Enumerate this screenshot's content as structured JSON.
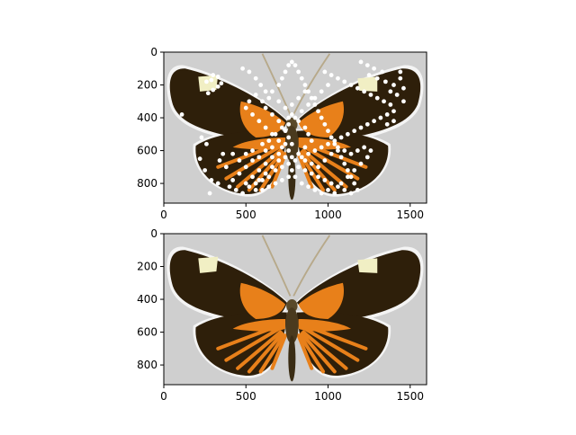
{
  "chart_data": [
    {
      "type": "image",
      "subject": "butterfly-photo-with-keypoints",
      "xlim": [
        0,
        1600
      ],
      "ylim": [
        920,
        0
      ],
      "xticks": [
        0,
        500,
        1000,
        1500
      ],
      "yticks": [
        0,
        200,
        400,
        600,
        800
      ],
      "xlabel": "",
      "ylabel": "",
      "title": "",
      "overlay_color": "#ffffff",
      "background_color": "#cfcfcf",
      "points": [
        [
          300,
          140
        ],
        [
          330,
          150
        ],
        [
          290,
          170
        ],
        [
          260,
          180
        ],
        [
          330,
          210
        ],
        [
          300,
          230
        ],
        [
          270,
          250
        ],
        [
          350,
          190
        ],
        [
          110,
          380
        ],
        [
          230,
          520
        ],
        [
          260,
          560
        ],
        [
          220,
          650
        ],
        [
          250,
          720
        ],
        [
          290,
          780
        ],
        [
          330,
          800
        ],
        [
          280,
          860
        ],
        [
          480,
          100
        ],
        [
          520,
          120
        ],
        [
          560,
          160
        ],
        [
          590,
          200
        ],
        [
          620,
          240
        ],
        [
          560,
          260
        ],
        [
          520,
          300
        ],
        [
          500,
          340
        ],
        [
          540,
          380
        ],
        [
          580,
          420
        ],
        [
          620,
          460
        ],
        [
          660,
          500
        ],
        [
          700,
          540
        ],
        [
          720,
          580
        ],
        [
          660,
          580
        ],
        [
          620,
          600
        ],
        [
          580,
          640
        ],
        [
          540,
          660
        ],
        [
          500,
          700
        ],
        [
          460,
          740
        ],
        [
          420,
          780
        ],
        [
          400,
          820
        ],
        [
          440,
          840
        ],
        [
          480,
          860
        ],
        [
          520,
          820
        ],
        [
          560,
          800
        ],
        [
          600,
          780
        ],
        [
          640,
          760
        ],
        [
          680,
          720
        ],
        [
          720,
          700
        ],
        [
          700,
          660
        ],
        [
          660,
          640
        ],
        [
          620,
          680
        ],
        [
          580,
          720
        ],
        [
          540,
          760
        ],
        [
          500,
          800
        ],
        [
          380,
          700
        ],
        [
          340,
          660
        ],
        [
          360,
          620
        ],
        [
          420,
          620
        ],
        [
          460,
          660
        ],
        [
          500,
          620
        ],
        [
          540,
          600
        ],
        [
          600,
          560
        ],
        [
          640,
          540
        ],
        [
          680,
          500
        ],
        [
          720,
          460
        ],
        [
          700,
          420
        ],
        [
          660,
          380
        ],
        [
          620,
          340
        ],
        [
          600,
          300
        ],
        [
          640,
          280
        ],
        [
          660,
          240
        ],
        [
          700,
          200
        ],
        [
          720,
          160
        ],
        [
          740,
          120
        ],
        [
          760,
          80
        ],
        [
          780,
          60
        ],
        [
          800,
          80
        ],
        [
          820,
          120
        ],
        [
          840,
          160
        ],
        [
          860,
          200
        ],
        [
          880,
          240
        ],
        [
          900,
          280
        ],
        [
          920,
          320
        ],
        [
          940,
          360
        ],
        [
          960,
          400
        ],
        [
          980,
          440
        ],
        [
          1000,
          480
        ],
        [
          1020,
          520
        ],
        [
          1040,
          560
        ],
        [
          1060,
          600
        ],
        [
          1080,
          640
        ],
        [
          1100,
          680
        ],
        [
          1120,
          720
        ],
        [
          1140,
          760
        ],
        [
          1160,
          800
        ],
        [
          1180,
          840
        ],
        [
          1140,
          860
        ],
        [
          1100,
          840
        ],
        [
          1060,
          820
        ],
        [
          1020,
          800
        ],
        [
          980,
          780
        ],
        [
          940,
          760
        ],
        [
          900,
          740
        ],
        [
          860,
          720
        ],
        [
          820,
          700
        ],
        [
          800,
          660
        ],
        [
          840,
          640
        ],
        [
          880,
          620
        ],
        [
          920,
          600
        ],
        [
          960,
          580
        ],
        [
          1000,
          560
        ],
        [
          1040,
          540
        ],
        [
          1080,
          520
        ],
        [
          1120,
          500
        ],
        [
          1160,
          480
        ],
        [
          1200,
          460
        ],
        [
          1240,
          440
        ],
        [
          1280,
          420
        ],
        [
          1320,
          400
        ],
        [
          1360,
          380
        ],
        [
          1400,
          360
        ],
        [
          1380,
          320
        ],
        [
          1340,
          300
        ],
        [
          1300,
          280
        ],
        [
          1260,
          260
        ],
        [
          1220,
          240
        ],
        [
          1180,
          220
        ],
        [
          1140,
          200
        ],
        [
          1100,
          180
        ],
        [
          1060,
          160
        ],
        [
          1020,
          140
        ],
        [
          980,
          120
        ],
        [
          1000,
          200
        ],
        [
          960,
          240
        ],
        [
          920,
          280
        ],
        [
          880,
          320
        ],
        [
          840,
          360
        ],
        [
          800,
          400
        ],
        [
          760,
          440
        ],
        [
          740,
          480
        ],
        [
          760,
          520
        ],
        [
          780,
          560
        ],
        [
          760,
          600
        ],
        [
          740,
          640
        ],
        [
          760,
          680
        ],
        [
          780,
          720
        ],
        [
          760,
          760
        ],
        [
          800,
          760
        ],
        [
          840,
          800
        ],
        [
          880,
          820
        ],
        [
          920,
          840
        ],
        [
          960,
          860
        ],
        [
          1000,
          840
        ],
        [
          1040,
          860
        ],
        [
          1080,
          800
        ],
        [
          1120,
          760
        ],
        [
          1160,
          720
        ],
        [
          1200,
          680
        ],
        [
          1240,
          640
        ],
        [
          1260,
          600
        ],
        [
          1220,
          580
        ],
        [
          1180,
          600
        ],
        [
          1140,
          620
        ],
        [
          1100,
          600
        ],
        [
          1060,
          580
        ],
        [
          1020,
          620
        ],
        [
          980,
          660
        ],
        [
          940,
          700
        ],
        [
          900,
          680
        ],
        [
          860,
          660
        ],
        [
          1250,
          140
        ],
        [
          1300,
          160
        ],
        [
          1350,
          180
        ],
        [
          1400,
          200
        ],
        [
          1440,
          160
        ],
        [
          1460,
          220
        ],
        [
          1420,
          260
        ],
        [
          1380,
          240
        ],
        [
          1330,
          120
        ],
        [
          1280,
          100
        ],
        [
          1240,
          80
        ],
        [
          1200,
          60
        ],
        [
          1440,
          120
        ],
        [
          1460,
          300
        ],
        [
          1400,
          420
        ],
        [
          1360,
          440
        ],
        [
          700,
          300
        ],
        [
          740,
          340
        ],
        [
          780,
          380
        ],
        [
          820,
          420
        ],
        [
          860,
          460
        ],
        [
          880,
          500
        ],
        [
          900,
          540
        ],
        [
          700,
          620
        ],
        [
          660,
          700
        ],
        [
          620,
          740
        ],
        [
          580,
          780
        ],
        [
          560,
          840
        ],
        [
          600,
          840
        ],
        [
          640,
          820
        ],
        [
          680,
          800
        ],
        [
          720,
          780
        ],
        [
          860,
          580
        ],
        [
          820,
          620
        ],
        [
          780,
          640
        ],
        [
          740,
          560
        ],
        [
          760,
          400
        ],
        [
          780,
          320
        ],
        [
          820,
          280
        ],
        [
          860,
          240
        ]
      ]
    },
    {
      "type": "image",
      "subject": "butterfly-photo",
      "xlim": [
        0,
        1600
      ],
      "ylim": [
        920,
        0
      ],
      "xticks": [
        0,
        500,
        1000,
        1500
      ],
      "yticks": [
        0,
        200,
        400,
        600,
        800
      ],
      "xlabel": "",
      "ylabel": "",
      "title": "",
      "background_color": "#cfcfcf"
    }
  ],
  "colors": {
    "wing_dark": "#2e1f0a",
    "wing_orange": "#e8801a",
    "spot_cream": "#f1efc4",
    "body": "#5a4a2a",
    "outline": "#f4f4f4"
  }
}
